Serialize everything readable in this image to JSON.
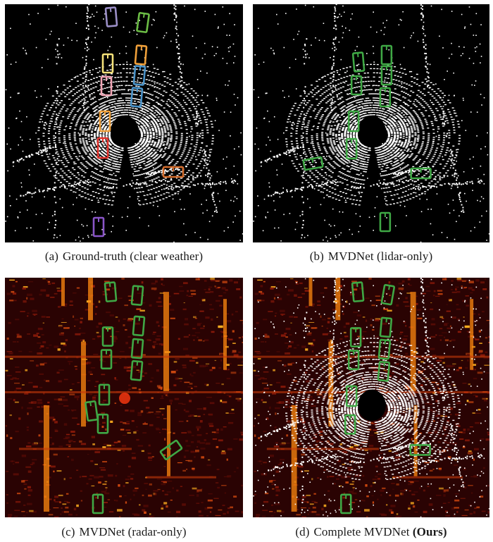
{
  "figure": {
    "panels": [
      {
        "id": "a",
        "letter": "(a)",
        "label": "Ground-truth (clear weather)",
        "label_bold": "",
        "background": "lidar",
        "box_style": "colored"
      },
      {
        "id": "b",
        "letter": "(b)",
        "label": "MVDNet (lidar-only)",
        "label_bold": "",
        "background": "lidar",
        "box_style": "green"
      },
      {
        "id": "c",
        "letter": "(c)",
        "label": "MVDNet (radar-only)",
        "label_bold": "",
        "background": "radar",
        "box_style": "green"
      },
      {
        "id": "d",
        "letter": "(d)",
        "label": "Complete MVDNet ",
        "label_bold": "(Ours)",
        "background": "radar+lidar",
        "box_style": "green"
      }
    ],
    "colors": {
      "box_green": "#3fa845",
      "gt_purple": "#9b8fc7",
      "gt_green": "#6cbd45",
      "gt_yellow": "#f4e27a",
      "gt_orange": "#f0a03a",
      "gt_pink": "#f3a6b6",
      "gt_blue": "#4a93c9",
      "gt_red": "#e0302a",
      "gt_brown": "#d06a2a",
      "gt_violet": "#8a55c8",
      "radar_dark": "#3a0505",
      "radar_hot": "#ff7a00"
    }
  }
}
